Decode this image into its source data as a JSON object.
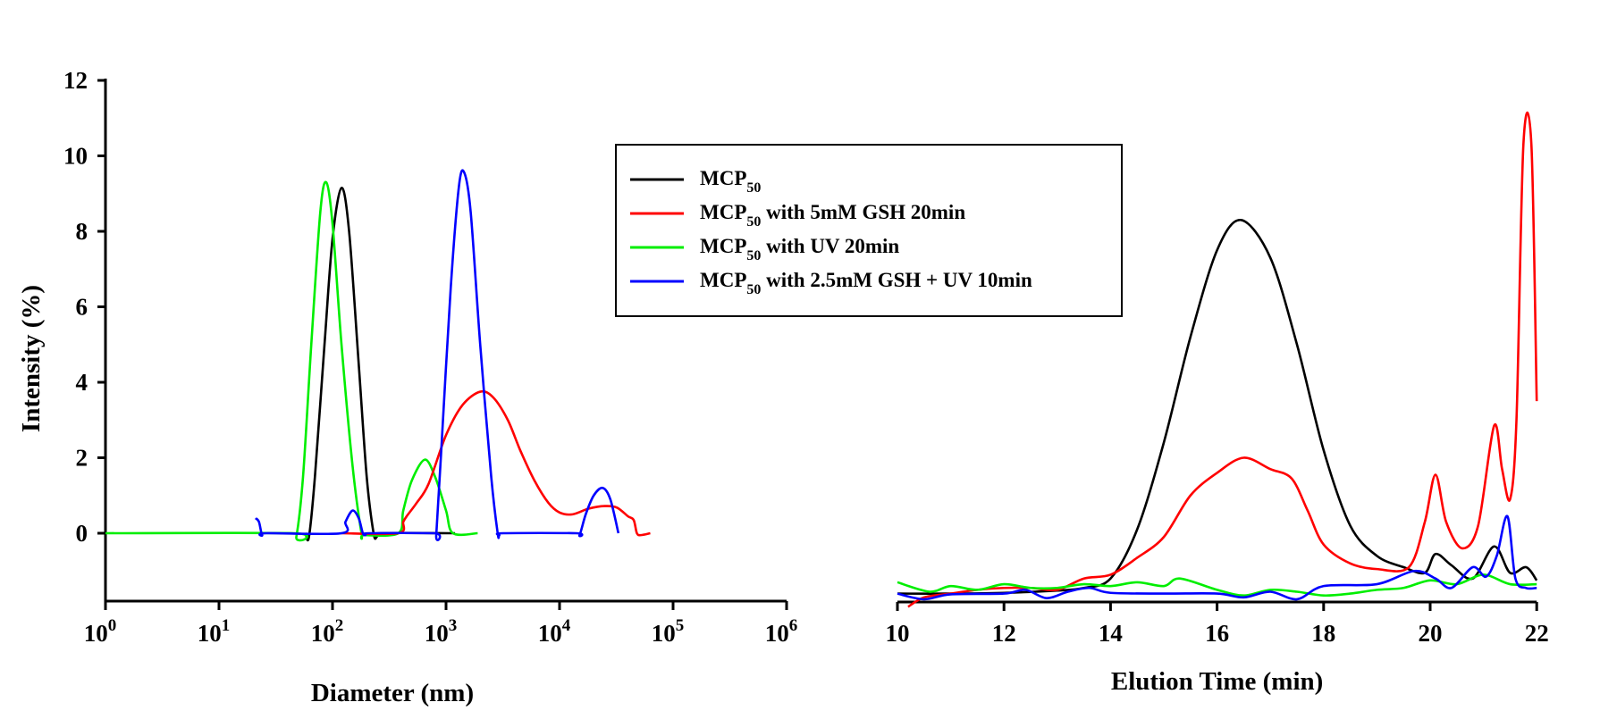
{
  "colors": {
    "black": "#000000",
    "red": "#ff0000",
    "green": "#00ee00",
    "blue": "#0000ff"
  },
  "legend": {
    "placement": "top-center",
    "entries": [
      {
        "prefix": "MCP",
        "sub": "50",
        "suffix": "",
        "color": "#000000"
      },
      {
        "prefix": "MCP",
        "sub": "50",
        "suffix": " with 5mM GSH 20min",
        "color": "#ff0000"
      },
      {
        "prefix": "MCP",
        "sub": "50",
        "suffix": " with UV 20min",
        "color": "#00ee00"
      },
      {
        "prefix": "MCP",
        "sub": "50",
        "suffix": " with 2.5mM GSH + UV 10min",
        "color": "#0000ff"
      }
    ]
  },
  "chart_data": [
    {
      "type": "line",
      "xlabel": "Diameter (nm)",
      "ylabel": "Intensity (%)",
      "xscale": "log",
      "xlim": [
        1,
        1000000
      ],
      "ylim": [
        -1.8,
        12
      ],
      "yticks": [
        "0",
        "2",
        "4",
        "6",
        "8",
        "10",
        "12"
      ],
      "xticks": [
        {
          "base": "10",
          "exp": "0"
        },
        {
          "base": "10",
          "exp": "1"
        },
        {
          "base": "10",
          "exp": "2"
        },
        {
          "base": "10",
          "exp": "3"
        },
        {
          "base": "10",
          "exp": "4"
        },
        {
          "base": "10",
          "exp": "5"
        },
        {
          "base": "10",
          "exp": "6"
        }
      ],
      "grid": false,
      "series": [
        {
          "color": "#000000",
          "points": [
            [
              58,
              0
            ],
            [
              62,
              -0.1
            ],
            [
              70,
              1.5
            ],
            [
              85,
              5
            ],
            [
              100,
              7.8
            ],
            [
              120,
              9.15
            ],
            [
              140,
              8
            ],
            [
              170,
              4.5
            ],
            [
              200,
              1.5
            ],
            [
              230,
              0
            ],
            [
              245,
              -0.1
            ],
            [
              260,
              0
            ],
            [
              1200,
              0
            ]
          ]
        },
        {
          "color": "#00ee00",
          "points": [
            [
              1,
              0
            ],
            [
              45,
              0
            ],
            [
              48,
              -0.1
            ],
            [
              55,
              1.5
            ],
            [
              65,
              5
            ],
            [
              78,
              8.5
            ],
            [
              88,
              9.3
            ],
            [
              100,
              8.2
            ],
            [
              120,
              5
            ],
            [
              150,
              1.8
            ],
            [
              180,
              0
            ],
            [
              190,
              -0.05
            ],
            [
              380,
              0
            ],
            [
              420,
              0.6
            ],
            [
              500,
              1.4
            ],
            [
              650,
              1.95
            ],
            [
              800,
              1.5
            ],
            [
              1000,
              0.6
            ],
            [
              1150,
              0
            ],
            [
              1900,
              0
            ]
          ]
        },
        {
          "color": "#ff0000",
          "points": [
            [
              120,
              0
            ],
            [
              380,
              0
            ],
            [
              420,
              0.3
            ],
            [
              450,
              0.45
            ],
            [
              550,
              0.8
            ],
            [
              700,
              1.3
            ],
            [
              1000,
              2.6
            ],
            [
              1400,
              3.4
            ],
            [
              2000,
              3.75
            ],
            [
              2600,
              3.6
            ],
            [
              3500,
              3.0
            ],
            [
              4500,
              2.2
            ],
            [
              6000,
              1.4
            ],
            [
              8000,
              0.8
            ],
            [
              10000,
              0.55
            ],
            [
              13000,
              0.5
            ],
            [
              18000,
              0.65
            ],
            [
              25000,
              0.72
            ],
            [
              32000,
              0.68
            ],
            [
              40000,
              0.45
            ],
            [
              45000,
              0.35
            ],
            [
              48000,
              0
            ],
            [
              52000,
              -0.05
            ],
            [
              63000,
              0
            ]
          ]
        },
        {
          "color": "#0000ff",
          "points": [
            [
              21,
              0.4
            ],
            [
              22.5,
              0.3
            ],
            [
              24,
              -0.05
            ],
            [
              26,
              0
            ],
            [
              120,
              0
            ],
            [
              130,
              0.3
            ],
            [
              150,
              0.6
            ],
            [
              170,
              0.4
            ],
            [
              185,
              0
            ],
            [
              195,
              -0.05
            ],
            [
              210,
              0
            ],
            [
              800,
              0
            ],
            [
              820,
              -0.05
            ],
            [
              900,
              2
            ],
            [
              1100,
              6.5
            ],
            [
              1300,
              9.2
            ],
            [
              1450,
              9.55
            ],
            [
              1650,
              8.5
            ],
            [
              2000,
              5
            ],
            [
              2500,
              1.5
            ],
            [
              2850,
              0
            ],
            [
              2950,
              -0.05
            ],
            [
              3200,
              0
            ],
            [
              14000,
              0
            ],
            [
              15000,
              -0.05
            ],
            [
              17000,
              0.5
            ],
            [
              20000,
              1.0
            ],
            [
              24000,
              1.2
            ],
            [
              28000,
              0.9
            ],
            [
              33000,
              0
            ]
          ]
        }
      ]
    },
    {
      "type": "line",
      "xlabel": "Elution Time (min)",
      "xlim": [
        10,
        22
      ],
      "xticks": [
        "10",
        "12",
        "14",
        "16",
        "18",
        "20",
        "22"
      ],
      "y_axis_shown": false,
      "grid": false,
      "series": [
        {
          "color": "#000000",
          "points": [
            [
              10,
              -1.6
            ],
            [
              11,
              -1.6
            ],
            [
              12,
              -1.58
            ],
            [
              13,
              -1.52
            ],
            [
              13.5,
              -1.45
            ],
            [
              14,
              -1.2
            ],
            [
              14.5,
              0.1
            ],
            [
              15,
              2.4
            ],
            [
              15.5,
              5.2
            ],
            [
              16,
              7.5
            ],
            [
              16.45,
              8.3
            ],
            [
              17,
              7.3
            ],
            [
              17.5,
              5.0
            ],
            [
              18,
              2.2
            ],
            [
              18.5,
              0.2
            ],
            [
              19,
              -0.6
            ],
            [
              19.5,
              -0.9
            ],
            [
              19.9,
              -1.05
            ],
            [
              20.1,
              -0.55
            ],
            [
              20.4,
              -0.85
            ],
            [
              20.8,
              -1.2
            ],
            [
              21.2,
              -0.35
            ],
            [
              21.5,
              -1.05
            ],
            [
              21.8,
              -0.9
            ],
            [
              22,
              -1.25
            ]
          ]
        },
        {
          "color": "#ff0000",
          "points": [
            [
              10.2,
              -1.95
            ],
            [
              10.5,
              -1.7
            ],
            [
              11,
              -1.6
            ],
            [
              11.5,
              -1.5
            ],
            [
              12,
              -1.45
            ],
            [
              12.5,
              -1.45
            ],
            [
              13,
              -1.5
            ],
            [
              13.5,
              -1.2
            ],
            [
              14,
              -1.1
            ],
            [
              14.5,
              -0.65
            ],
            [
              15,
              -0.1
            ],
            [
              15.5,
              1.0
            ],
            [
              16,
              1.6
            ],
            [
              16.5,
              2.0
            ],
            [
              17,
              1.7
            ],
            [
              17.4,
              1.45
            ],
            [
              17.7,
              0.6
            ],
            [
              18,
              -0.3
            ],
            [
              18.5,
              -0.8
            ],
            [
              19,
              -0.95
            ],
            [
              19.6,
              -0.9
            ],
            [
              19.9,
              0.3
            ],
            [
              20.1,
              1.55
            ],
            [
              20.3,
              0.3
            ],
            [
              20.6,
              -0.4
            ],
            [
              20.9,
              0.2
            ],
            [
              21.2,
              2.85
            ],
            [
              21.35,
              1.7
            ],
            [
              21.5,
              0.9
            ],
            [
              21.62,
              3.0
            ],
            [
              21.75,
              10.3
            ],
            [
              21.9,
              10.3
            ],
            [
              22,
              3.5
            ]
          ]
        },
        {
          "color": "#00ee00",
          "points": [
            [
              10,
              -1.3
            ],
            [
              10.6,
              -1.55
            ],
            [
              11,
              -1.4
            ],
            [
              11.5,
              -1.5
            ],
            [
              12,
              -1.35
            ],
            [
              12.5,
              -1.45
            ],
            [
              13,
              -1.45
            ],
            [
              13.5,
              -1.35
            ],
            [
              14,
              -1.4
            ],
            [
              14.5,
              -1.3
            ],
            [
              15,
              -1.4
            ],
            [
              15.3,
              -1.2
            ],
            [
              16,
              -1.5
            ],
            [
              16.5,
              -1.65
            ],
            [
              17,
              -1.5
            ],
            [
              17.5,
              -1.55
            ],
            [
              18,
              -1.65
            ],
            [
              18.5,
              -1.6
            ],
            [
              19,
              -1.5
            ],
            [
              19.5,
              -1.45
            ],
            [
              20,
              -1.25
            ],
            [
              20.5,
              -1.35
            ],
            [
              21,
              -1.1
            ],
            [
              21.5,
              -1.35
            ],
            [
              22,
              -1.35
            ]
          ]
        },
        {
          "color": "#0000ff",
          "points": [
            [
              10,
              -1.6
            ],
            [
              10.5,
              -1.75
            ],
            [
              11,
              -1.62
            ],
            [
              12,
              -1.6
            ],
            [
              12.4,
              -1.5
            ],
            [
              12.8,
              -1.72
            ],
            [
              13.2,
              -1.55
            ],
            [
              13.6,
              -1.45
            ],
            [
              14,
              -1.58
            ],
            [
              15,
              -1.6
            ],
            [
              16,
              -1.6
            ],
            [
              16.5,
              -1.7
            ],
            [
              17,
              -1.55
            ],
            [
              17.5,
              -1.75
            ],
            [
              18,
              -1.4
            ],
            [
              19,
              -1.35
            ],
            [
              19.7,
              -1.0
            ],
            [
              20.1,
              -1.2
            ],
            [
              20.4,
              -1.45
            ],
            [
              20.8,
              -0.9
            ],
            [
              21.05,
              -1.15
            ],
            [
              21.25,
              -0.6
            ],
            [
              21.45,
              0.45
            ],
            [
              21.6,
              -1.2
            ],
            [
              21.8,
              -1.45
            ],
            [
              22,
              -1.45
            ]
          ]
        }
      ]
    }
  ]
}
